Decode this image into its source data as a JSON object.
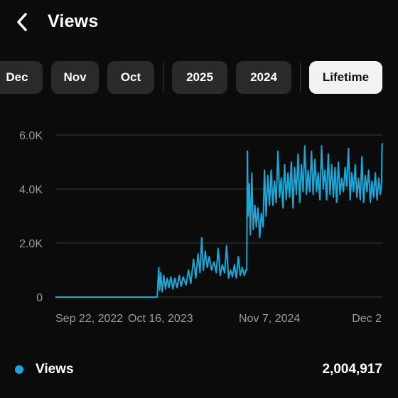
{
  "header": {
    "back_icon": "chevron-left-icon",
    "title": "Views"
  },
  "filters": {
    "chips": [
      {
        "label": "Dec",
        "active": false
      },
      {
        "label": "Nov",
        "active": false
      },
      {
        "label": "Oct",
        "active": false
      },
      {
        "label": "2025",
        "active": false
      },
      {
        "label": "2024",
        "active": false
      },
      {
        "label": "Lifetime",
        "active": true
      }
    ]
  },
  "colors": {
    "background": "#0b0b0b",
    "series": "#1ba8d8",
    "chip_bg": "#2a2a2a",
    "chip_active_bg": "#f2f2f2",
    "grid": "#3a3a3a",
    "tick_text": "#9a9a9a"
  },
  "chart_data": {
    "type": "line",
    "ylim": [
      0,
      6000
    ],
    "y_ticks": [
      "0",
      "2.0K",
      "4.0K",
      "6.0K"
    ],
    "x_ticks": [
      "Sep 22, 2022",
      "Oct 16, 2023",
      "Nov 7, 2024",
      "Dec 2"
    ],
    "series": [
      {
        "name": "Views",
        "points": [
          [
            "2022-09-22",
            0
          ],
          [
            "2023-01-01",
            0
          ],
          [
            "2023-06-01",
            0
          ],
          [
            "2023-09-01",
            0
          ],
          [
            "2023-09-20",
            0
          ],
          [
            "2023-09-26",
            1100
          ],
          [
            "2023-09-29",
            250
          ],
          [
            "2023-10-03",
            900
          ],
          [
            "2023-10-08",
            200
          ],
          [
            "2023-10-14",
            800
          ],
          [
            "2023-10-20",
            300
          ],
          [
            "2023-10-26",
            700
          ],
          [
            "2023-11-01",
            350
          ],
          [
            "2023-11-08",
            750
          ],
          [
            "2023-11-15",
            300
          ],
          [
            "2023-11-22",
            700
          ],
          [
            "2023-11-30",
            350
          ],
          [
            "2023-12-08",
            800
          ],
          [
            "2023-12-15",
            400
          ],
          [
            "2023-12-22",
            750
          ],
          [
            "2024-01-01",
            450
          ],
          [
            "2024-01-10",
            1000
          ],
          [
            "2024-01-18",
            500
          ],
          [
            "2024-01-28",
            1400
          ],
          [
            "2024-02-05",
            700
          ],
          [
            "2024-02-13",
            1600
          ],
          [
            "2024-02-20",
            900
          ],
          [
            "2024-02-26",
            2200
          ],
          [
            "2024-03-03",
            1000
          ],
          [
            "2024-03-10",
            1700
          ],
          [
            "2024-03-17",
            1100
          ],
          [
            "2024-03-24",
            1500
          ],
          [
            "2024-04-01",
            1000
          ],
          [
            "2024-04-10",
            1300
          ],
          [
            "2024-04-18",
            900
          ],
          [
            "2024-04-25",
            1800
          ],
          [
            "2024-05-02",
            800
          ],
          [
            "2024-05-10",
            1200
          ],
          [
            "2024-05-18",
            900
          ],
          [
            "2024-05-25",
            1900
          ],
          [
            "2024-06-01",
            700
          ],
          [
            "2024-06-08",
            1000
          ],
          [
            "2024-06-15",
            750
          ],
          [
            "2024-06-22",
            1200
          ],
          [
            "2024-06-29",
            700
          ],
          [
            "2024-07-06",
            1500
          ],
          [
            "2024-07-13",
            800
          ],
          [
            "2024-07-20",
            1100
          ],
          [
            "2024-07-27",
            800
          ],
          [
            "2024-08-02",
            1000
          ],
          [
            "2024-08-05",
            1000
          ],
          [
            "2024-08-07",
            5400
          ],
          [
            "2024-08-10",
            3000
          ],
          [
            "2024-08-14",
            4200
          ],
          [
            "2024-08-18",
            2300
          ],
          [
            "2024-08-23",
            4600
          ],
          [
            "2024-08-28",
            2500
          ],
          [
            "2024-09-03",
            3400
          ],
          [
            "2024-09-08",
            2600
          ],
          [
            "2024-09-14",
            3300
          ],
          [
            "2024-09-20",
            2200
          ],
          [
            "2024-09-26",
            3100
          ],
          [
            "2024-10-02",
            2600
          ],
          [
            "2024-10-07",
            4700
          ],
          [
            "2024-10-13",
            3000
          ],
          [
            "2024-10-19",
            4500
          ],
          [
            "2024-10-25",
            3400
          ],
          [
            "2024-10-31",
            4700
          ],
          [
            "2024-11-06",
            3400
          ],
          [
            "2024-11-12",
            4300
          ],
          [
            "2024-11-18",
            3500
          ],
          [
            "2024-11-24",
            5400
          ],
          [
            "2024-11-30",
            3700
          ],
          [
            "2024-12-06",
            4400
          ],
          [
            "2024-12-12",
            3300
          ],
          [
            "2024-12-18",
            4900
          ],
          [
            "2024-12-24",
            3600
          ],
          [
            "2024-12-30",
            4600
          ],
          [
            "2025-01-05",
            3700
          ],
          [
            "2025-01-11",
            5000
          ],
          [
            "2025-01-17",
            3300
          ],
          [
            "2025-01-23",
            4800
          ],
          [
            "2025-01-29",
            3800
          ],
          [
            "2025-02-04",
            5300
          ],
          [
            "2025-02-10",
            3500
          ],
          [
            "2025-02-16",
            4900
          ],
          [
            "2025-02-22",
            3900
          ],
          [
            "2025-02-28",
            5600
          ],
          [
            "2025-03-06",
            3800
          ],
          [
            "2025-03-12",
            4700
          ],
          [
            "2025-03-18",
            3900
          ],
          [
            "2025-03-24",
            5400
          ],
          [
            "2025-03-30",
            3800
          ],
          [
            "2025-04-05",
            5100
          ],
          [
            "2025-04-11",
            3900
          ],
          [
            "2025-04-17",
            4600
          ],
          [
            "2025-04-23",
            3600
          ],
          [
            "2025-04-29",
            5600
          ],
          [
            "2025-05-05",
            4000
          ],
          [
            "2025-05-11",
            4700
          ],
          [
            "2025-05-17",
            3600
          ],
          [
            "2025-05-23",
            5300
          ],
          [
            "2025-05-29",
            3800
          ],
          [
            "2025-06-04",
            4900
          ],
          [
            "2025-06-10",
            3700
          ],
          [
            "2025-06-16",
            4800
          ],
          [
            "2025-06-22",
            3500
          ],
          [
            "2025-06-28",
            5000
          ],
          [
            "2025-07-04",
            3800
          ],
          [
            "2025-07-10",
            4400
          ],
          [
            "2025-07-16",
            3900
          ],
          [
            "2025-07-22",
            4800
          ],
          [
            "2025-07-28",
            4100
          ],
          [
            "2025-08-03",
            5500
          ],
          [
            "2025-08-09",
            3600
          ],
          [
            "2025-08-15",
            4600
          ],
          [
            "2025-08-21",
            3900
          ],
          [
            "2025-08-27",
            4900
          ],
          [
            "2025-09-02",
            3700
          ],
          [
            "2025-09-08",
            4400
          ],
          [
            "2025-09-14",
            3600
          ],
          [
            "2025-09-20",
            5200
          ],
          [
            "2025-09-26",
            3500
          ],
          [
            "2025-10-02",
            4500
          ],
          [
            "2025-10-08",
            3900
          ],
          [
            "2025-10-14",
            4700
          ],
          [
            "2025-10-20",
            3500
          ],
          [
            "2025-10-26",
            4300
          ],
          [
            "2025-11-01",
            3700
          ],
          [
            "2025-11-07",
            4600
          ],
          [
            "2025-11-13",
            3600
          ],
          [
            "2025-11-19",
            4400
          ],
          [
            "2025-11-25",
            3800
          ],
          [
            "2025-11-29",
            4200
          ],
          [
            "2025-12-01",
            5600
          ],
          [
            "2025-12-02",
            5700
          ]
        ]
      }
    ]
  },
  "legend": {
    "label": "Views",
    "total": "2,004,917"
  }
}
